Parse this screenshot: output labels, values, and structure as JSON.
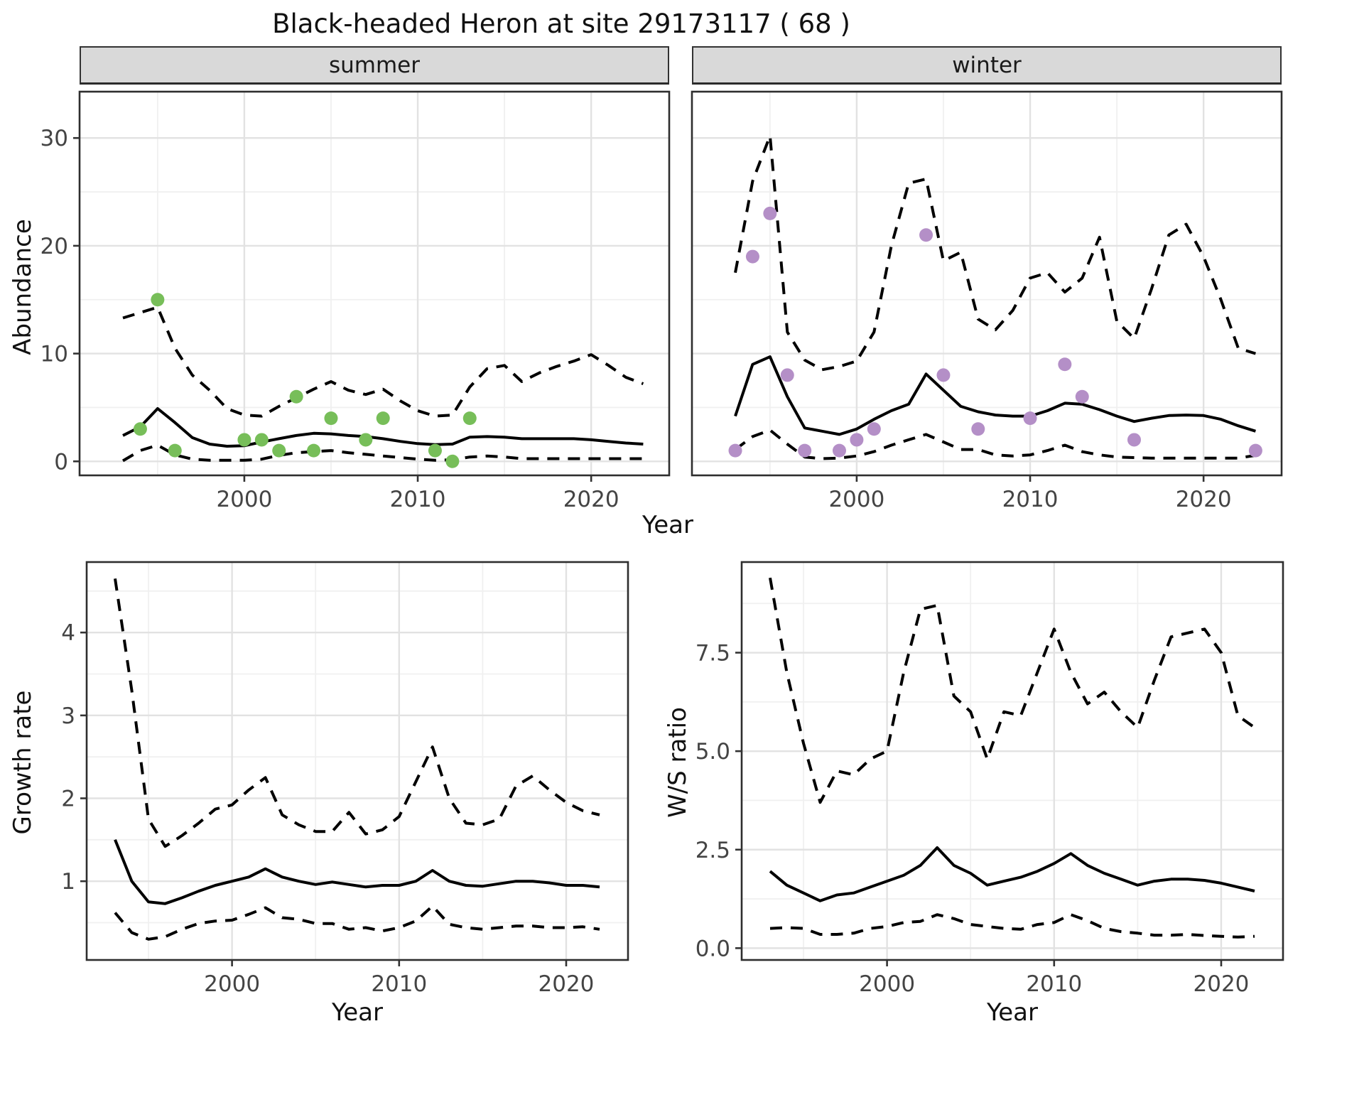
{
  "title": "Black-headed Heron at site 29173117 ( 68 )",
  "colors": {
    "summer_point": "#77BE59",
    "winter_point": "#B48FC7",
    "line": "#000000",
    "strip_bg": "#D9D9D9",
    "grid_major": "#E2E2E2",
    "grid_minor": "#F0F0F0",
    "panel_border": "#2E2E2E",
    "tick_text": "#444444"
  },
  "top_xlabel": "Year",
  "chart_data": [
    {
      "name": "abundance",
      "type": "line",
      "ylabel": "Abundance",
      "xlabel": "Year",
      "x": [
        1993,
        1994,
        1995,
        1996,
        1997,
        1998,
        1999,
        2000,
        2001,
        2002,
        2003,
        2004,
        2005,
        2006,
        2007,
        2008,
        2009,
        2010,
        2011,
        2012,
        2013,
        2014,
        2015,
        2016,
        2017,
        2018,
        2019,
        2020,
        2021,
        2022,
        2023
      ],
      "xlim": [
        1990.5,
        2024.5
      ],
      "ylim": [
        -1.3,
        34.3
      ],
      "xticks": {
        "values": [
          2000,
          2010,
          2020
        ],
        "labels": [
          "2000",
          "2010",
          "2020"
        ],
        "minor": [
          1995,
          2005,
          2015
        ]
      },
      "yticks": {
        "values": [
          0,
          10,
          20,
          30
        ],
        "labels": [
          "0",
          "10",
          "20",
          "30"
        ],
        "minor": [
          5,
          15,
          25
        ]
      },
      "facets": [
        {
          "label": "summer",
          "point_color": "#77BE59",
          "series": [
            {
              "name": "median",
              "style": "solid",
              "values": [
                2.4,
                3.2,
                4.9,
                3.6,
                2.2,
                1.6,
                1.4,
                1.45,
                1.8,
                2.1,
                2.4,
                2.6,
                2.55,
                2.4,
                2.3,
                2.1,
                1.85,
                1.65,
                1.55,
                1.6,
                2.25,
                2.3,
                2.25,
                2.1,
                2.1,
                2.1,
                2.1,
                2.0,
                1.85,
                1.7,
                1.6
              ]
            },
            {
              "name": "upper_ci",
              "style": "dashed",
              "values": [
                13.3,
                13.8,
                14.3,
                10.5,
                8.0,
                6.6,
                4.9,
                4.3,
                4.2,
                5.1,
                5.9,
                6.7,
                7.4,
                6.6,
                6.2,
                6.7,
                5.6,
                4.7,
                4.2,
                4.3,
                6.9,
                8.6,
                8.9,
                7.4,
                8.2,
                8.8,
                9.3,
                9.9,
                8.9,
                7.8,
                7.2
              ]
            },
            {
              "name": "lower_ci",
              "style": "dashed",
              "values": [
                0.05,
                1.0,
                1.5,
                0.6,
                0.2,
                0.1,
                0.1,
                0.1,
                0.2,
                0.55,
                0.8,
                0.9,
                1.0,
                0.8,
                0.65,
                0.5,
                0.35,
                0.2,
                0.1,
                0.15,
                0.4,
                0.5,
                0.4,
                0.25,
                0.25,
                0.25,
                0.25,
                0.25,
                0.25,
                0.25,
                0.25
              ]
            }
          ],
          "points": {
            "name": "observed_counts",
            "x": [
              1994,
              1995,
              1996,
              2000,
              2001,
              2002,
              2003,
              2004,
              2005,
              2007,
              2008,
              2011,
              2012,
              2013
            ],
            "y": [
              3,
              15,
              1,
              2,
              2,
              1,
              6,
              1,
              4,
              2,
              4,
              1,
              0,
              4
            ]
          }
        },
        {
          "label": "winter",
          "point_color": "#B48FC7",
          "series": [
            {
              "name": "median",
              "style": "solid",
              "values": [
                4.2,
                9.0,
                9.7,
                6.0,
                3.1,
                2.8,
                2.5,
                3.0,
                3.9,
                4.7,
                5.3,
                8.1,
                6.6,
                5.1,
                4.6,
                4.3,
                4.2,
                4.2,
                4.7,
                5.4,
                5.3,
                4.8,
                4.2,
                3.7,
                4.0,
                4.25,
                4.3,
                4.25,
                3.9,
                3.3,
                2.8
              ]
            },
            {
              "name": "upper_ci",
              "style": "dashed",
              "values": [
                17.5,
                26,
                30.2,
                12,
                9.4,
                8.5,
                8.8,
                9.3,
                12,
                20,
                25.8,
                26.2,
                18.6,
                19.4,
                13.2,
                12.2,
                14,
                17,
                17.5,
                15.7,
                17,
                20.8,
                13,
                11.4,
                16,
                21,
                22,
                19,
                15,
                10.5,
                10
              ]
            },
            {
              "name": "lower_ci",
              "style": "dashed",
              "values": [
                1.1,
                2.3,
                2.9,
                1.6,
                0.4,
                0.25,
                0.3,
                0.5,
                0.9,
                1.5,
                2.0,
                2.5,
                1.8,
                1.1,
                1.1,
                0.6,
                0.5,
                0.6,
                1.0,
                1.5,
                0.9,
                0.6,
                0.4,
                0.35,
                0.3,
                0.3,
                0.3,
                0.3,
                0.3,
                0.3,
                0.55
              ]
            }
          ],
          "points": {
            "name": "observed_counts",
            "x": [
              1993,
              1994,
              1995,
              1996,
              1997,
              1999,
              2000,
              2001,
              2004,
              2005,
              2007,
              2010,
              2012,
              2013,
              2016,
              2023
            ],
            "y": [
              1,
              19,
              23,
              8,
              1,
              1,
              2,
              3,
              21,
              8,
              3,
              4,
              9,
              6,
              2,
              1
            ]
          }
        }
      ]
    },
    {
      "name": "growth_rate",
      "type": "line",
      "ylabel": "Growth rate",
      "xlabel": "Year",
      "x": [
        1993,
        1994,
        1995,
        1996,
        1997,
        1998,
        1999,
        2000,
        2001,
        2002,
        2003,
        2004,
        2005,
        2006,
        2007,
        2008,
        2009,
        2010,
        2011,
        2012,
        2013,
        2014,
        2015,
        2016,
        2017,
        2018,
        2019,
        2020,
        2021,
        2022
      ],
      "xlim": [
        1991.3,
        2023.7
      ],
      "ylim": [
        0.05,
        4.85
      ],
      "xticks": {
        "values": [
          2000,
          2010,
          2020
        ],
        "labels": [
          "2000",
          "2010",
          "2020"
        ],
        "minor": [
          1995,
          2005,
          2015
        ]
      },
      "yticks": {
        "values": [
          1,
          2,
          3,
          4
        ],
        "labels": [
          "1",
          "2",
          "3",
          "4"
        ],
        "minor": [
          0.5,
          1.5,
          2.5,
          3.5,
          4.5
        ]
      },
      "series": [
        {
          "name": "median",
          "style": "solid",
          "values": [
            1.5,
            1.0,
            0.75,
            0.73,
            0.8,
            0.88,
            0.95,
            1.0,
            1.05,
            1.15,
            1.05,
            1.0,
            0.96,
            0.99,
            0.96,
            0.93,
            0.95,
            0.95,
            1.0,
            1.13,
            1.0,
            0.95,
            0.94,
            0.97,
            1.0,
            1.0,
            0.98,
            0.95,
            0.95,
            0.93
          ]
        },
        {
          "name": "upper_ci",
          "style": "dashed",
          "values": [
            4.65,
            3.3,
            1.75,
            1.42,
            1.55,
            1.7,
            1.87,
            1.92,
            2.1,
            2.25,
            1.8,
            1.68,
            1.6,
            1.6,
            1.83,
            1.57,
            1.62,
            1.78,
            2.2,
            2.62,
            2.0,
            1.7,
            1.68,
            1.75,
            2.15,
            2.27,
            2.1,
            1.95,
            1.85,
            1.8
          ]
        },
        {
          "name": "lower_ci",
          "style": "dashed",
          "values": [
            0.62,
            0.38,
            0.3,
            0.33,
            0.42,
            0.49,
            0.52,
            0.53,
            0.6,
            0.68,
            0.56,
            0.54,
            0.49,
            0.49,
            0.42,
            0.44,
            0.4,
            0.44,
            0.52,
            0.7,
            0.48,
            0.44,
            0.42,
            0.44,
            0.46,
            0.46,
            0.44,
            0.44,
            0.45,
            0.42
          ]
        }
      ]
    },
    {
      "name": "ws_ratio",
      "type": "line",
      "ylabel": "W/S ratio",
      "xlabel": "Year",
      "x": [
        1993,
        1994,
        1995,
        1996,
        1997,
        1998,
        1999,
        2000,
        2001,
        2002,
        2003,
        2004,
        2005,
        2006,
        2007,
        2008,
        2009,
        2010,
        2011,
        2012,
        2013,
        2014,
        2015,
        2016,
        2017,
        2018,
        2019,
        2020,
        2021,
        2022
      ],
      "xlim": [
        1991.3,
        2023.7
      ],
      "ylim": [
        -0.3,
        9.8
      ],
      "xticks": {
        "values": [
          2000,
          2010,
          2020
        ],
        "labels": [
          "2000",
          "2010",
          "2020"
        ],
        "minor": [
          1995,
          2005,
          2015
        ]
      },
      "yticks": {
        "values": [
          0,
          2.5,
          5,
          7.5
        ],
        "labels": [
          "0.0",
          "2.5",
          "5.0",
          "7.5"
        ],
        "minor": [
          1.25,
          3.75,
          6.25,
          8.75
        ]
      },
      "series": [
        {
          "name": "median",
          "style": "solid",
          "values": [
            1.95,
            1.6,
            1.4,
            1.2,
            1.35,
            1.4,
            1.55,
            1.7,
            1.85,
            2.1,
            2.55,
            2.1,
            1.9,
            1.6,
            1.7,
            1.8,
            1.95,
            2.15,
            2.4,
            2.1,
            1.9,
            1.75,
            1.6,
            1.7,
            1.75,
            1.75,
            1.72,
            1.65,
            1.55,
            1.45
          ]
        },
        {
          "name": "upper_ci",
          "style": "dashed",
          "values": [
            9.4,
            7.0,
            5.2,
            3.7,
            4.5,
            4.4,
            4.8,
            5.0,
            7.0,
            8.6,
            8.7,
            6.4,
            6.0,
            4.8,
            6.0,
            5.9,
            7.0,
            8.1,
            7.0,
            6.2,
            6.5,
            6.0,
            5.6,
            6.8,
            7.9,
            8.0,
            8.1,
            7.5,
            5.9,
            5.6
          ]
        },
        {
          "name": "lower_ci",
          "style": "dashed",
          "values": [
            0.5,
            0.52,
            0.5,
            0.35,
            0.35,
            0.38,
            0.5,
            0.55,
            0.65,
            0.68,
            0.85,
            0.75,
            0.6,
            0.55,
            0.5,
            0.48,
            0.6,
            0.65,
            0.85,
            0.7,
            0.5,
            0.42,
            0.38,
            0.33,
            0.33,
            0.35,
            0.32,
            0.3,
            0.28,
            0.3
          ]
        }
      ]
    }
  ]
}
